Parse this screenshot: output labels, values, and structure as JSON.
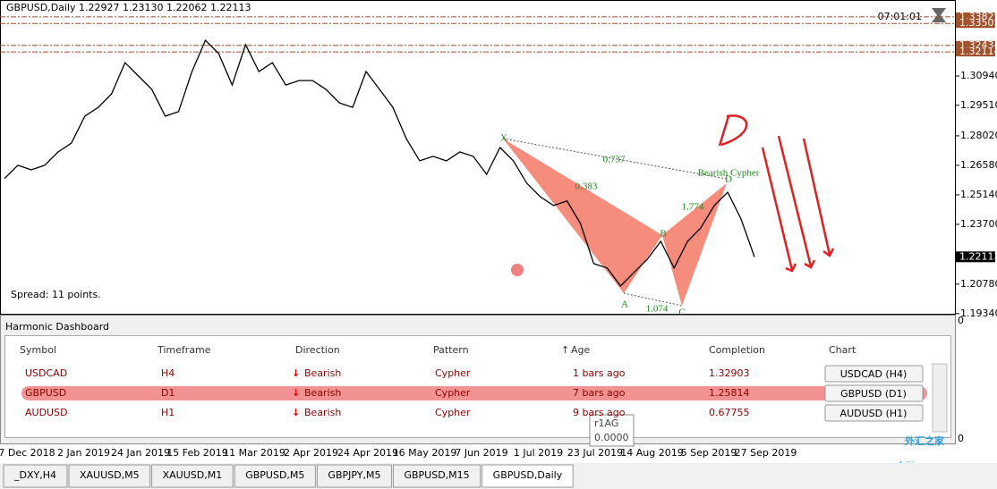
{
  "header": {
    "symbol_info": "GBPUSD,Daily  1.22927 1.23130 1.22062 1.22113",
    "clock": "07:01:01"
  },
  "chart_data": {
    "type": "line",
    "color": "#000000",
    "values": [
      1.2593,
      1.2658,
      1.2636,
      1.2658,
      1.2723,
      1.2767,
      1.2898,
      1.2941,
      1.3007,
      1.3159,
      1.3094,
      1.3029,
      1.2898,
      1.292,
      1.3116,
      1.3268,
      1.3203,
      1.305,
      1.3247,
      1.3116,
      1.3159,
      1.305,
      1.3072,
      1.3072,
      1.3029,
      1.2963,
      1.2941,
      1.3116,
      1.3029,
      1.2941,
      1.2789,
      1.268,
      1.2702,
      1.268,
      1.2723,
      1.2702,
      1.2614,
      1.2745,
      1.268,
      1.2571,
      1.2505,
      1.2462,
      1.2484,
      1.2375,
      1.2178,
      1.2157,
      1.2069,
      1.2135,
      1.22,
      1.2287,
      1.2157,
      1.2287,
      1.2353,
      1.2462,
      1.2527,
      1.2396,
      1.2211
    ],
    "ylim": [
      1.1929,
      1.3465
    ],
    "yticks": [
      {
        "value": 1.3094,
        "label": "1.30940"
      },
      {
        "value": 1.2951,
        "label": "1.29510"
      },
      {
        "value": 1.2802,
        "label": "1.28020"
      },
      {
        "value": 1.2658,
        "label": "1.26580"
      },
      {
        "value": 1.2514,
        "label": "1.25140"
      },
      {
        "value": 1.237,
        "label": "1.23700"
      },
      {
        "value": 1.2078,
        "label": "1.20780"
      },
      {
        "value": 1.1934,
        "label": "1.19340"
      }
    ],
    "levels": [
      1.33825,
      1.33505,
      1.32434,
      1.32114
    ],
    "current_price": 1.22113,
    "x_labels": [
      "7 Dec 2018",
      "2 Jan 2019",
      "24 Jan 2019",
      "15 Feb 2019",
      "11 Mar 2019",
      "2 Apr 2019",
      "24 Apr 2019",
      "16 May 2019",
      "7 Jun 2019",
      "1 Jul 2019",
      "23 Jul 2019",
      "14 Aug 2019",
      "5 Sep 2019",
      "27 Sep 2019"
    ]
  },
  "pattern": {
    "name": "Bearish Cypher",
    "points": [
      "X",
      "A",
      "B",
      "C",
      "D"
    ],
    "ratios": [
      0.737,
      0.383,
      1.774,
      1.074
    ]
  },
  "spread": "Spread: 11 points.",
  "dashboard": {
    "title": "Harmonic Dashboard",
    "columns": [
      "Symbol",
      "Timeframe",
      "Direction",
      "Pattern",
      "Age",
      "Completion",
      "Chart"
    ],
    "rows": [
      [
        "USDCAD",
        "H4",
        "Bearish",
        "Cypher",
        "1 bars ago",
        "1.32903",
        "USDCAD (H4)"
      ],
      [
        "GBPUSD",
        "D1",
        "Bearish",
        "Cypher",
        "7 bars ago",
        "1.25814",
        "GBPUSD (D1)"
      ],
      [
        "AUDUSD",
        "H1",
        "Bearish",
        "Cypher",
        "9 bars ago",
        "0.67755",
        "AUDUSD (H1)"
      ]
    ],
    "axis_labels": [
      "0",
      "0"
    ]
  },
  "tooltip": {
    "name": "r1AG",
    "value": "0.0000"
  },
  "watermark": {
    "text": "外汇之家",
    "url": "www.eazhijia.com"
  },
  "tabs": [
    "_DXY,H4",
    "XAUUSD,M5",
    "XAUUSD,M1",
    "GBPUSD,M5",
    "GBPJPY,M5",
    "GBPUSD,M15",
    "GBPUSD,Daily"
  ]
}
